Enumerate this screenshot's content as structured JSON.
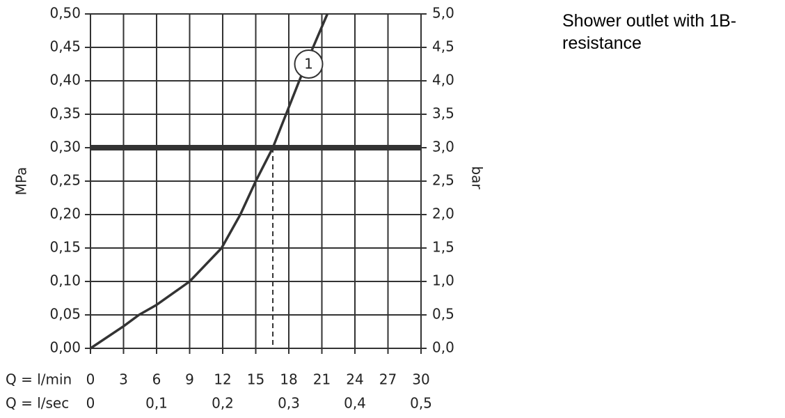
{
  "chart_data": {
    "type": "line",
    "x": [
      0,
      3,
      4.4,
      6,
      9,
      11.9,
      13.6,
      15,
      16.55,
      17.75,
      18.95,
      20.2,
      21.5
    ],
    "series": [
      {
        "name": "1",
        "color": "#333333",
        "values": [
          0,
          0.033,
          0.05,
          0.065,
          0.1,
          0.15,
          0.2,
          0.25,
          0.3,
          0.35,
          0.4,
          0.45,
          0.5
        ]
      }
    ],
    "xlabel": "Q = l/min",
    "x2label": "Q = l/sec",
    "ylabel": "MPa",
    "y2label": "bar",
    "xlim": [
      0,
      30
    ],
    "xticks": [
      0,
      3,
      6,
      9,
      12,
      15,
      18,
      21,
      24,
      27,
      30
    ],
    "x2lim": [
      0,
      0.5
    ],
    "x2ticks": [
      0,
      {
        "value": 0.1,
        "label": "0,1"
      },
      {
        "value": 0.2,
        "label": "0,2"
      },
      {
        "value": 0.3,
        "label": "0,3"
      },
      {
        "value": 0.4,
        "label": "0,4"
      },
      {
        "value": 0.5,
        "label": "0,5"
      }
    ],
    "ylim": [
      0,
      0.5
    ],
    "yticks": [
      {
        "value": 0,
        "label": "0,00"
      },
      {
        "value": 0.05,
        "label": "0,05"
      },
      {
        "value": 0.1,
        "label": "0,10"
      },
      {
        "value": 0.15,
        "label": "0,15"
      },
      {
        "value": 0.2,
        "label": "0,20"
      },
      {
        "value": 0.25,
        "label": "0,25"
      },
      {
        "value": 0.3,
        "label": "0,30"
      },
      {
        "value": 0.35,
        "label": "0,35"
      },
      {
        "value": 0.4,
        "label": "0,40"
      },
      {
        "value": 0.45,
        "label": "0,45"
      },
      {
        "value": 0.5,
        "label": "0,50"
      }
    ],
    "y2lim": [
      0,
      5
    ],
    "y2ticks": [
      {
        "value": 0,
        "label": "0,0"
      },
      {
        "value": 0.5,
        "label": "0,5"
      },
      {
        "value": 1,
        "label": "1,0"
      },
      {
        "value": 1.5,
        "label": "1,5"
      },
      {
        "value": 2,
        "label": "2,0"
      },
      {
        "value": 2.5,
        "label": "2,5"
      },
      {
        "value": 3,
        "label": "3,0"
      },
      {
        "value": 3.5,
        "label": "3,5"
      },
      {
        "value": 4,
        "label": "4,0"
      },
      {
        "value": 4.5,
        "label": "4,5"
      },
      {
        "value": 5,
        "label": "5,0"
      }
    ],
    "hline": 0.3,
    "vline": 16.55,
    "grid": true,
    "annotation": {
      "text": "1",
      "x": 19.8,
      "y": 0.425
    },
    "note": "Shower outlet with 1B-resistance"
  }
}
